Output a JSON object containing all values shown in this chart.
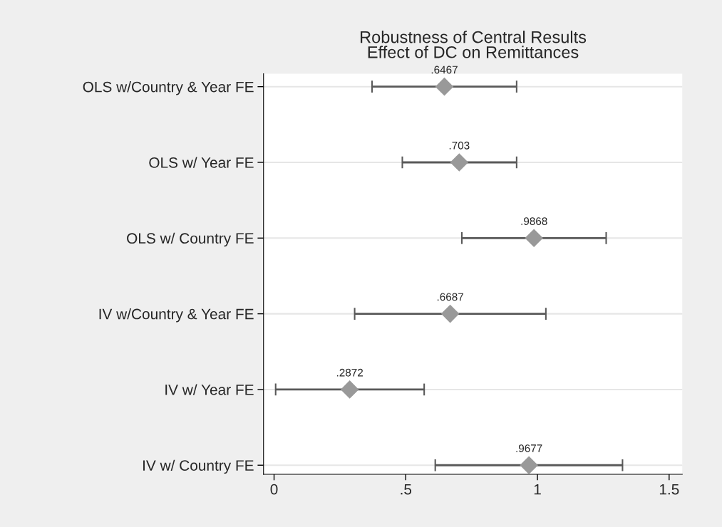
{
  "chart_data": {
    "type": "scatter",
    "orientation": "horizontal",
    "title": "Robustness of Central Results\nEffect of DC on Remittances",
    "categories": [
      "OLS w/Country & Year FE",
      "OLS w/ Year FE",
      "OLS w/ Country FE",
      "IV w/Country & Year FE",
      "IV w/ Year FE",
      "IV w/ Country FE"
    ],
    "values": [
      0.6467,
      0.703,
      0.9868,
      0.6687,
      0.2872,
      0.9677
    ],
    "errors": [
      [
        0.372,
        0.921
      ],
      [
        0.487,
        0.921
      ],
      [
        0.713,
        1.261
      ],
      [
        0.306,
        1.032
      ],
      [
        0.006,
        0.57
      ],
      [
        0.612,
        1.323
      ]
    ],
    "value_labels": [
      ".6467",
      ".703",
      ".9868",
      ".6687",
      ".2872",
      ".9677"
    ],
    "color": "#999999",
    "marker": "diamond",
    "grid": "y",
    "xlim": [
      -0.04,
      1.55
    ],
    "xticks": [
      0,
      {
        "value": 0.5,
        "label": ".5"
      },
      1,
      1.5
    ]
  }
}
